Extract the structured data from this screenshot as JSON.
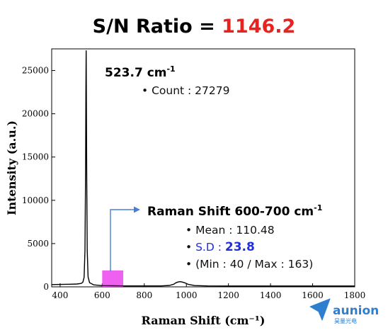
{
  "title": {
    "prefix": "S/N Ratio = ",
    "value": "1146.2",
    "value_color": "#e8231f"
  },
  "chart_data": {
    "type": "line",
    "xlabel": "Raman Shift (cm⁻¹)",
    "ylabel": "Intensity (a.u.)",
    "xlim": [
      360,
      1800
    ],
    "ylim": [
      0,
      27500
    ],
    "x_ticks": [
      400,
      600,
      800,
      1000,
      1200,
      1400,
      1600,
      1800
    ],
    "y_ticks": [
      0,
      5000,
      10000,
      15000,
      20000,
      25000
    ],
    "grid": false,
    "series": [
      {
        "color": "#000000",
        "x": [
          360,
          400,
          450,
          480,
          500,
          508,
          514,
          518,
          521,
          522.5,
          523.7,
          525,
          526.5,
          529,
          533,
          540,
          560,
          600,
          650,
          700,
          760,
          820,
          880,
          920,
          940,
          950,
          960,
          970,
          980,
          995,
          1010,
          1040,
          1100,
          1200,
          1300,
          1400,
          1500,
          1600,
          1700,
          1800
        ],
        "y": [
          260,
          280,
          300,
          330,
          390,
          520,
          1100,
          4200,
          13500,
          22500,
          27279,
          22000,
          12500,
          4200,
          1150,
          480,
          230,
          140,
          120,
          110,
          105,
          105,
          110,
          160,
          300,
          470,
          560,
          600,
          560,
          440,
          280,
          150,
          110,
          100,
          100,
          100,
          100,
          100,
          100,
          100
        ]
      }
    ],
    "highlight_region": {
      "x_start": 600,
      "x_end": 700,
      "y_top": 1900,
      "color": "#f060f0"
    },
    "annotations": {
      "peak": {
        "label": "523.7 cm",
        "label_sup": "-1",
        "count": "• Count : 27279"
      },
      "noise": {
        "label": "Raman Shift 600-700 cm",
        "label_sup": "-1",
        "mean": "• Mean : 110.48",
        "sd_prefix": "• ",
        "sd_label": "S.D : ",
        "sd_value": "23.8",
        "sd_color": "#1f2fe0",
        "minmax": "• (Min : 40 / Max : 163)"
      }
    }
  },
  "logo": {
    "name": "aunion",
    "sub": "昊量光电",
    "icon": "paper-plane-icon",
    "color": "#2f7fd0"
  }
}
